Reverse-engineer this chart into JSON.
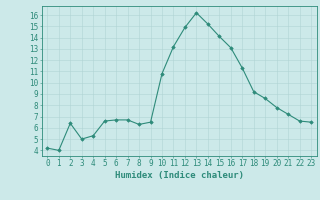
{
  "x": [
    0,
    1,
    2,
    3,
    4,
    5,
    6,
    7,
    8,
    9,
    10,
    11,
    12,
    13,
    14,
    15,
    16,
    17,
    18,
    19,
    20,
    21,
    22,
    23
  ],
  "y": [
    4.2,
    4.0,
    6.4,
    5.0,
    5.3,
    6.6,
    6.7,
    6.7,
    6.3,
    6.5,
    10.8,
    13.2,
    14.9,
    16.2,
    15.2,
    14.1,
    13.1,
    11.3,
    9.2,
    8.6,
    7.8,
    7.2,
    6.6,
    6.5
  ],
  "line_color": "#2e8b7a",
  "marker": "D",
  "marker_size": 1.8,
  "bg_color": "#cce9e9",
  "grid_color": "#b0d4d4",
  "xlabel": "Humidex (Indice chaleur)",
  "xlim": [
    -0.5,
    23.5
  ],
  "ylim": [
    3.5,
    16.8
  ],
  "yticks": [
    4,
    5,
    6,
    7,
    8,
    9,
    10,
    11,
    12,
    13,
    14,
    15,
    16
  ],
  "xtick_labels": [
    "0",
    "1",
    "2",
    "3",
    "4",
    "5",
    "6",
    "7",
    "8",
    "9",
    "10",
    "11",
    "12",
    "13",
    "14",
    "15",
    "16",
    "17",
    "18",
    "19",
    "20",
    "21",
    "22",
    "23"
  ],
  "axis_color": "#2e8b7a",
  "tick_color": "#2e8b7a",
  "label_fontsize": 6.5,
  "tick_fontsize": 5.5
}
